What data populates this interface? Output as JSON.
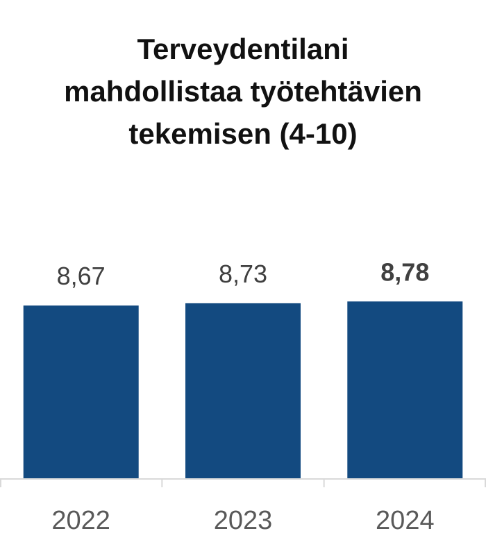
{
  "chart_data": {
    "type": "bar",
    "title_lines": [
      "Terveydentilani",
      "mahdollistaa työtehtävien",
      "tekemisen (4-10)"
    ],
    "categories": [
      "2022",
      "2023",
      "2024"
    ],
    "values": [
      8.67,
      8.73,
      8.78
    ],
    "value_labels": [
      "8,67",
      "8,73",
      "8,78"
    ],
    "emphasized_index": 2,
    "ylim": [
      4,
      10
    ],
    "grid": false,
    "legend": "none",
    "colors": {
      "bar": "#134A80",
      "axis": "#D9D9D9",
      "value_text": "#404040",
      "tick_text": "#595959",
      "title_text": "#111111"
    }
  }
}
